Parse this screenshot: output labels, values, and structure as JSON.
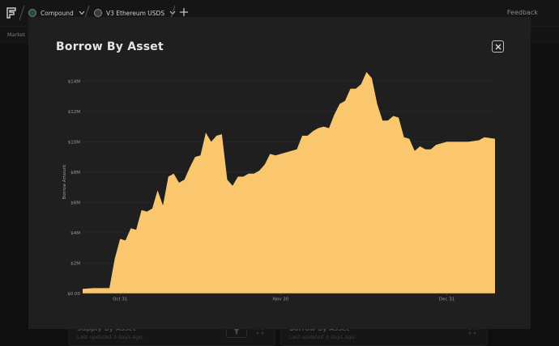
{
  "topbar": {
    "breadcrumbs": [
      {
        "label": "Compound"
      },
      {
        "label": "V3 Ethereum USDS"
      }
    ],
    "feedback_label": "Feedback",
    "market_label": "Market"
  },
  "background_cards": [
    {
      "title": "Supply By Asset",
      "subtitle": "Last updated 3 days ago."
    },
    {
      "title": "Borrow By Asset",
      "subtitle": "Last updated 3 days ago."
    }
  ],
  "modal": {
    "title": "Borrow By Asset",
    "close_icon": "close-icon"
  },
  "colors": {
    "area_fill": "#fac76e",
    "modal_bg": "#1f1f1f",
    "page_bg": "#0f0f0f"
  },
  "chart_data": {
    "type": "area",
    "title": "",
    "xlabel": "",
    "ylabel": "Borrow Amount",
    "ylim": [
      0,
      14500000
    ],
    "y_ticks": [
      0,
      2000000,
      4000000,
      6000000,
      8000000,
      10000000,
      12000000,
      14000000
    ],
    "y_tick_labels": [
      "$0.00",
      "$2M",
      "$4M",
      "$6M",
      "$8M",
      "$10M",
      "$12M",
      "$14M"
    ],
    "x_range": [
      "2024-10-24",
      "2025-01-09"
    ],
    "x_ticks": [
      "2024-10-31",
      "2024-11-30",
      "2024-12-31"
    ],
    "x_tick_labels": [
      "Oct 31",
      "Nov 30",
      "Dec 31"
    ],
    "grid": true,
    "series": [
      {
        "x": [
          "2024-10-24",
          "2024-10-26",
          "2024-10-29",
          "2024-10-30",
          "2024-10-31",
          "2024-11-01",
          "2024-11-02",
          "2024-11-03",
          "2024-11-04",
          "2024-11-05",
          "2024-11-06",
          "2024-11-07",
          "2024-11-08",
          "2024-11-09",
          "2024-11-10",
          "2024-11-11",
          "2024-11-12",
          "2024-11-13",
          "2024-11-14",
          "2024-11-15",
          "2024-11-16",
          "2024-11-17",
          "2024-11-18",
          "2024-11-19",
          "2024-11-20",
          "2024-11-21",
          "2024-11-22",
          "2024-11-23",
          "2024-11-24",
          "2024-11-25",
          "2024-11-26",
          "2024-11-27",
          "2024-11-28",
          "2024-11-29",
          "2024-11-30",
          "2024-12-01",
          "2024-12-02",
          "2024-12-03",
          "2024-12-04",
          "2024-12-05",
          "2024-12-06",
          "2024-12-07",
          "2024-12-08",
          "2024-12-09",
          "2024-12-10",
          "2024-12-11",
          "2024-12-12",
          "2024-12-13",
          "2024-12-14",
          "2024-12-15",
          "2024-12-16",
          "2024-12-17",
          "2024-12-18",
          "2024-12-19",
          "2024-12-20",
          "2024-12-21",
          "2024-12-22",
          "2024-12-23",
          "2024-12-24",
          "2024-12-25",
          "2024-12-26",
          "2024-12-27",
          "2024-12-28",
          "2024-12-29",
          "2024-12-30",
          "2024-12-31",
          "2025-01-02",
          "2025-01-04",
          "2025-01-06",
          "2025-01-07",
          "2025-01-09"
        ],
        "values": [
          300000,
          350000,
          350000,
          2300000,
          3600000,
          3500000,
          4300000,
          4200000,
          5500000,
          5400000,
          5600000,
          6800000,
          5800000,
          7700000,
          7900000,
          7300000,
          7500000,
          8300000,
          9000000,
          9100000,
          10600000,
          10000000,
          10400000,
          10500000,
          7500000,
          7100000,
          7700000,
          7700000,
          7900000,
          7900000,
          8100000,
          8500000,
          9200000,
          9100000,
          9200000,
          9300000,
          9400000,
          9500000,
          10400000,
          10400000,
          10700000,
          10900000,
          11000000,
          10900000,
          11800000,
          12500000,
          12700000,
          13500000,
          13500000,
          13800000,
          14600000,
          14200000,
          12500000,
          11400000,
          11400000,
          11700000,
          11600000,
          10300000,
          10200000,
          9400000,
          9700000,
          9500000,
          9500000,
          9800000,
          9900000,
          10000000,
          10000000,
          10000000,
          10100000,
          10300000,
          10200000
        ]
      }
    ]
  }
}
